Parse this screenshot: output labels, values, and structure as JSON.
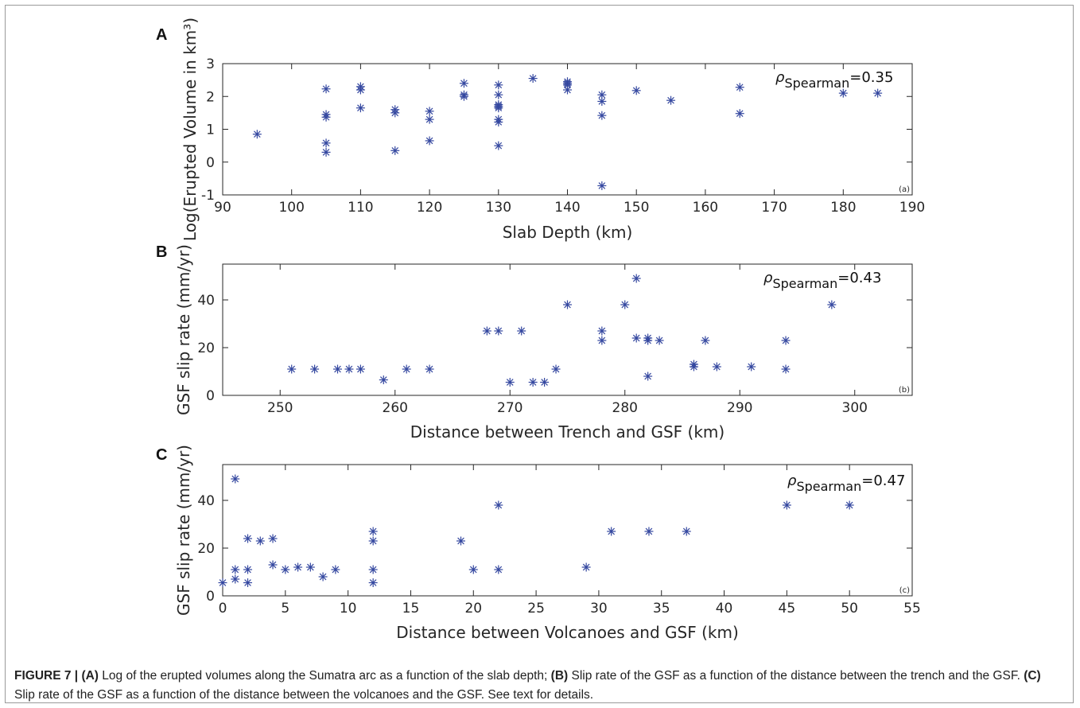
{
  "chart_data": [
    {
      "type": "scatter",
      "panel": "A",
      "corner_label": "(a)",
      "xlabel": "Slab Depth (km)",
      "ylabel": "Log(Erupted Volume in km³)",
      "xlim": [
        90,
        190
      ],
      "ylim": [
        -1,
        3
      ],
      "xticks": [
        90,
        100,
        110,
        120,
        130,
        140,
        150,
        160,
        170,
        180,
        190
      ],
      "yticks": [
        -1,
        0,
        1,
        2,
        3
      ],
      "rho_symbol": "ρ",
      "rho_sub": "Spearman",
      "rho_value": "=0.35",
      "marker_color": "#3548a0",
      "points": [
        [
          95,
          0.85
        ],
        [
          105,
          2.23
        ],
        [
          105,
          1.45
        ],
        [
          105,
          1.37
        ],
        [
          105,
          0.58
        ],
        [
          105,
          0.3
        ],
        [
          110,
          2.3
        ],
        [
          110,
          2.2
        ],
        [
          110,
          1.65
        ],
        [
          115,
          1.6
        ],
        [
          115,
          1.5
        ],
        [
          115,
          0.35
        ],
        [
          120,
          1.55
        ],
        [
          120,
          1.3
        ],
        [
          120,
          0.65
        ],
        [
          125,
          2.4
        ],
        [
          125,
          2.05
        ],
        [
          125,
          2.0
        ],
        [
          130,
          2.35
        ],
        [
          130,
          2.05
        ],
        [
          130,
          1.75
        ],
        [
          130,
          1.7
        ],
        [
          130,
          1.65
        ],
        [
          130,
          1.3
        ],
        [
          130,
          1.22
        ],
        [
          130,
          0.5
        ],
        [
          135,
          2.55
        ],
        [
          140,
          2.45
        ],
        [
          140,
          2.4
        ],
        [
          140,
          2.35
        ],
        [
          140,
          2.2
        ],
        [
          145,
          2.05
        ],
        [
          145,
          1.85
        ],
        [
          145,
          1.42
        ],
        [
          145,
          -0.72
        ],
        [
          150,
          2.18
        ],
        [
          155,
          1.88
        ],
        [
          165,
          2.28
        ],
        [
          165,
          1.48
        ],
        [
          180,
          2.1
        ],
        [
          185,
          2.1
        ]
      ]
    },
    {
      "type": "scatter",
      "panel": "B",
      "corner_label": "(b)",
      "xlabel": "Distance between Trench and GSF (km)",
      "ylabel": "GSF slip rate (mm/yr)",
      "xlim": [
        245,
        305
      ],
      "ylim": [
        0,
        55
      ],
      "xticks": [
        250,
        260,
        270,
        280,
        290,
        300
      ],
      "yticks": [
        0,
        20,
        40
      ],
      "rho_symbol": "ρ",
      "rho_sub": "Spearman",
      "rho_value": "=0.43",
      "marker_color": "#3548a0",
      "points": [
        [
          251,
          11
        ],
        [
          253,
          11
        ],
        [
          255,
          11
        ],
        [
          256,
          11
        ],
        [
          257,
          11
        ],
        [
          259,
          6.5
        ],
        [
          261,
          11
        ],
        [
          263,
          11
        ],
        [
          268,
          27
        ],
        [
          269,
          27
        ],
        [
          270,
          5.5
        ],
        [
          271,
          27
        ],
        [
          272,
          5.5
        ],
        [
          273,
          5.5
        ],
        [
          274,
          11
        ],
        [
          275,
          38
        ],
        [
          278,
          27
        ],
        [
          278,
          23
        ],
        [
          280,
          38
        ],
        [
          281,
          49
        ],
        [
          281,
          24
        ],
        [
          282,
          24
        ],
        [
          282,
          23
        ],
        [
          282,
          8
        ],
        [
          283,
          23
        ],
        [
          286,
          13
        ],
        [
          286,
          12
        ],
        [
          287,
          23
        ],
        [
          288,
          12
        ],
        [
          291,
          12
        ],
        [
          294,
          23
        ],
        [
          294,
          11
        ],
        [
          298,
          38
        ]
      ]
    },
    {
      "type": "scatter",
      "panel": "C",
      "corner_label": "(c)",
      "xlabel": "Distance between Volcanoes and GSF (km)",
      "ylabel": "GSF slip rate (mm/yr)",
      "xlim": [
        0,
        55
      ],
      "ylim": [
        0,
        55
      ],
      "xticks": [
        0,
        5,
        10,
        15,
        20,
        25,
        30,
        35,
        40,
        45,
        50,
        55
      ],
      "yticks": [
        0,
        20,
        40
      ],
      "rho_symbol": "ρ",
      "rho_sub": "Spearman",
      "rho_value": "=0.47",
      "marker_color": "#3548a0",
      "points": [
        [
          0,
          5.5
        ],
        [
          1,
          49
        ],
        [
          1,
          11
        ],
        [
          1,
          7
        ],
        [
          2,
          24
        ],
        [
          2,
          11
        ],
        [
          2,
          5.5
        ],
        [
          3,
          23
        ],
        [
          4,
          24
        ],
        [
          4,
          13
        ],
        [
          5,
          11
        ],
        [
          6,
          12
        ],
        [
          7,
          12
        ],
        [
          8,
          8
        ],
        [
          9,
          11
        ],
        [
          12,
          27
        ],
        [
          12,
          23
        ],
        [
          12,
          11
        ],
        [
          12,
          5.5
        ],
        [
          19,
          23
        ],
        [
          20,
          11
        ],
        [
          22,
          38
        ],
        [
          22,
          11
        ],
        [
          29,
          12
        ],
        [
          31,
          27
        ],
        [
          34,
          27
        ],
        [
          37,
          27
        ],
        [
          45,
          38
        ],
        [
          50,
          38
        ]
      ]
    }
  ],
  "caption": {
    "fig": "FIGURE 7 | ",
    "a_tag": "(A)",
    "a_text": " Log of the erupted volumes along the Sumatra arc as a function of the slab depth; ",
    "b_tag": "(B)",
    "b_text": " Slip rate of the GSF as a function of the distance between the trench and the GSF. ",
    "c_tag": "(C)",
    "c_text": " Slip rate of the GSF as a function of the distance between the volcanoes and the GSF. See text for details."
  }
}
